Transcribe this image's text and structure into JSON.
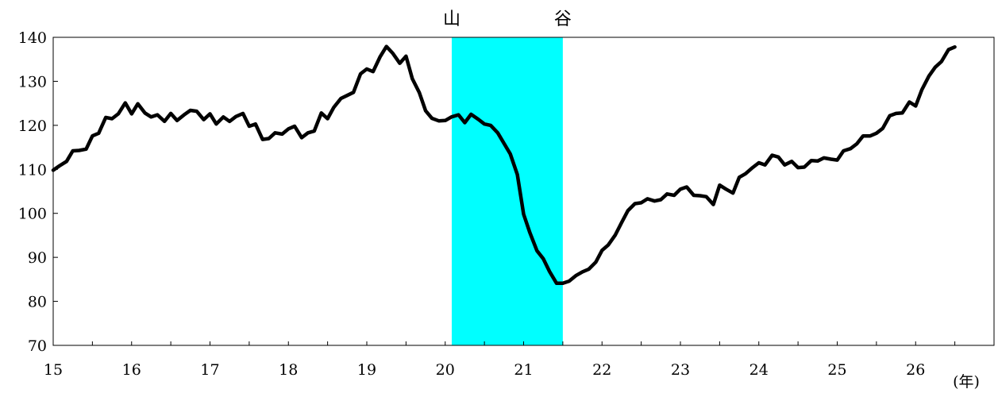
{
  "chart_data": {
    "type": "line",
    "title": "",
    "xlabel": "",
    "ylabel": "",
    "x_unit_label": "(年)",
    "ylim": [
      70,
      140
    ],
    "y_ticks": [
      70,
      80,
      90,
      100,
      110,
      120,
      130,
      140
    ],
    "xlim": [
      15,
      27.0
    ],
    "x_ticks": [
      15,
      16,
      17,
      18,
      19,
      20,
      21,
      22,
      23,
      24,
      25,
      26
    ],
    "grid": false,
    "legend": "none",
    "line_color": "#000000",
    "shade_color": "#00FFFF",
    "shaded_region": {
      "from": 20.0833,
      "to": 21.5,
      "start_label": "山",
      "end_label": "谷"
    },
    "series": [
      {
        "points": [
          [
            15.0,
            109.8
          ],
          [
            15.08,
            110.8
          ],
          [
            15.17,
            111.8
          ],
          [
            15.25,
            114.2
          ],
          [
            15.33,
            114.3
          ],
          [
            15.42,
            114.6
          ],
          [
            15.5,
            117.6
          ],
          [
            15.58,
            118.2
          ],
          [
            15.67,
            121.8
          ],
          [
            15.75,
            121.5
          ],
          [
            15.83,
            122.6
          ],
          [
            15.92,
            125.1
          ],
          [
            16.0,
            122.6
          ],
          [
            16.08,
            124.9
          ],
          [
            16.17,
            122.8
          ],
          [
            16.25,
            121.9
          ],
          [
            16.33,
            122.4
          ],
          [
            16.42,
            120.9
          ],
          [
            16.5,
            122.7
          ],
          [
            16.58,
            121.1
          ],
          [
            16.67,
            122.4
          ],
          [
            16.75,
            123.4
          ],
          [
            16.83,
            123.2
          ],
          [
            16.92,
            121.3
          ],
          [
            17.0,
            122.6
          ],
          [
            17.08,
            120.3
          ],
          [
            17.17,
            121.9
          ],
          [
            17.25,
            120.9
          ],
          [
            17.33,
            122.0
          ],
          [
            17.42,
            122.7
          ],
          [
            17.5,
            119.8
          ],
          [
            17.58,
            120.3
          ],
          [
            17.67,
            116.8
          ],
          [
            17.75,
            117.0
          ],
          [
            17.83,
            118.3
          ],
          [
            17.92,
            118.0
          ],
          [
            18.0,
            119.2
          ],
          [
            18.08,
            119.8
          ],
          [
            18.17,
            117.2
          ],
          [
            18.25,
            118.3
          ],
          [
            18.33,
            118.7
          ],
          [
            18.42,
            122.8
          ],
          [
            18.5,
            121.5
          ],
          [
            18.58,
            124.1
          ],
          [
            18.67,
            126.1
          ],
          [
            18.75,
            126.8
          ],
          [
            18.83,
            127.5
          ],
          [
            18.92,
            131.7
          ],
          [
            19.0,
            132.8
          ],
          [
            19.08,
            132.2
          ],
          [
            19.17,
            135.6
          ],
          [
            19.25,
            137.9
          ],
          [
            19.33,
            136.4
          ],
          [
            19.42,
            134.1
          ],
          [
            19.5,
            135.7
          ],
          [
            19.58,
            130.6
          ],
          [
            19.67,
            127.4
          ],
          [
            19.75,
            123.3
          ],
          [
            19.83,
            121.6
          ],
          [
            19.92,
            121.0
          ],
          [
            20.0,
            121.1
          ],
          [
            20.08,
            121.9
          ],
          [
            20.17,
            122.4
          ],
          [
            20.25,
            120.6
          ],
          [
            20.33,
            122.5
          ],
          [
            20.42,
            121.4
          ],
          [
            20.5,
            120.3
          ],
          [
            20.58,
            120.0
          ],
          [
            20.67,
            118.3
          ],
          [
            20.75,
            115.9
          ],
          [
            20.83,
            113.5
          ],
          [
            20.92,
            108.8
          ],
          [
            21.0,
            99.8
          ],
          [
            21.08,
            95.6
          ],
          [
            21.17,
            91.5
          ],
          [
            21.25,
            89.7
          ],
          [
            21.33,
            86.8
          ],
          [
            21.42,
            84.1
          ],
          [
            21.5,
            84.1
          ],
          [
            21.58,
            84.6
          ],
          [
            21.67,
            85.9
          ],
          [
            21.75,
            86.7
          ],
          [
            21.83,
            87.3
          ],
          [
            21.92,
            88.9
          ],
          [
            22.0,
            91.6
          ],
          [
            22.08,
            92.8
          ],
          [
            22.17,
            95.1
          ],
          [
            22.25,
            97.9
          ],
          [
            22.33,
            100.6
          ],
          [
            22.42,
            102.2
          ],
          [
            22.5,
            102.4
          ],
          [
            22.58,
            103.3
          ],
          [
            22.67,
            102.8
          ],
          [
            22.75,
            103.1
          ],
          [
            22.83,
            104.4
          ],
          [
            22.92,
            104.1
          ],
          [
            23.0,
            105.5
          ],
          [
            23.08,
            106.0
          ],
          [
            23.17,
            104.1
          ],
          [
            23.25,
            104.0
          ],
          [
            23.33,
            103.8
          ],
          [
            23.42,
            102.0
          ],
          [
            23.5,
            106.4
          ],
          [
            23.58,
            105.5
          ],
          [
            23.67,
            104.6
          ],
          [
            23.75,
            108.2
          ],
          [
            23.83,
            109.0
          ],
          [
            23.92,
            110.4
          ],
          [
            24.0,
            111.5
          ],
          [
            24.08,
            111.0
          ],
          [
            24.17,
            113.2
          ],
          [
            24.25,
            112.8
          ],
          [
            24.33,
            111.0
          ],
          [
            24.42,
            111.8
          ],
          [
            24.5,
            110.4
          ],
          [
            24.58,
            110.5
          ],
          [
            24.67,
            112.0
          ],
          [
            24.75,
            111.9
          ],
          [
            24.83,
            112.6
          ],
          [
            24.92,
            112.3
          ],
          [
            25.0,
            112.1
          ],
          [
            25.08,
            114.2
          ],
          [
            25.17,
            114.7
          ],
          [
            25.25,
            115.8
          ],
          [
            25.33,
            117.6
          ],
          [
            25.42,
            117.6
          ],
          [
            25.5,
            118.2
          ],
          [
            25.58,
            119.3
          ],
          [
            25.67,
            122.2
          ],
          [
            25.75,
            122.7
          ],
          [
            25.83,
            122.8
          ],
          [
            25.92,
            125.3
          ],
          [
            26.0,
            124.4
          ],
          [
            26.08,
            128.1
          ],
          [
            26.17,
            131.2
          ],
          [
            26.25,
            133.2
          ],
          [
            26.33,
            134.5
          ],
          [
            26.42,
            137.2
          ],
          [
            26.5,
            137.8
          ]
        ]
      }
    ]
  }
}
